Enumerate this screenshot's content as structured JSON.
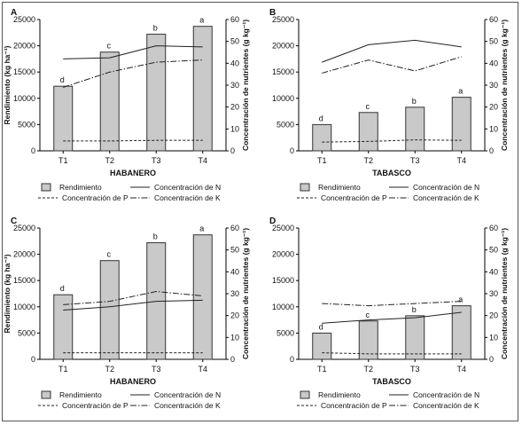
{
  "legend": {
    "rendimiento": "Rendimiento",
    "n": "Concentración de N",
    "p": "Concentración de P",
    "k": "Concentración de K"
  },
  "chart_data": [
    {
      "type": "bar",
      "panel": "A",
      "xlabel": "HABANERO",
      "ylabel": "Rendimiento (kg ha⁻¹)",
      "y2label": "Concentración de nutrientes (g kg⁻¹)",
      "categories": [
        "T1",
        "T2",
        "T3",
        "T4"
      ],
      "ylim": [
        0,
        25000
      ],
      "y2lim": [
        0,
        60
      ],
      "yticks": [
        "0",
        "5000",
        "10000",
        "15000",
        "20000",
        "25000"
      ],
      "y2ticks": [
        "0",
        "10",
        "20",
        "30",
        "40",
        "50",
        "60"
      ],
      "letters": [
        "d",
        "c",
        "b",
        "a"
      ],
      "bars": {
        "name": "Rendimiento",
        "values": [
          12300,
          18800,
          22200,
          23700
        ]
      },
      "lines": [
        {
          "key": "n",
          "name": "Concentración de N",
          "values": [
            42,
            42.5,
            48,
            47.5
          ]
        },
        {
          "key": "k",
          "name": "Concentración de K",
          "values": [
            29,
            36,
            40.5,
            41.5
          ]
        },
        {
          "key": "p",
          "name": "Concentración de P",
          "values": [
            4.5,
            4.5,
            4.8,
            4.8
          ]
        }
      ]
    },
    {
      "type": "bar",
      "panel": "B",
      "xlabel": "TABASCO",
      "ylabel": "",
      "y2label": "Concentración de nutrientes (g kg⁻¹)",
      "categories": [
        "T1",
        "T2",
        "T3",
        "T4"
      ],
      "ylim": [
        0,
        25000
      ],
      "y2lim": [
        0,
        60
      ],
      "yticks": [
        "0",
        "5000",
        "10000",
        "15000",
        "20000",
        "25000"
      ],
      "y2ticks": [
        "0",
        "10",
        "20",
        "30",
        "40",
        "50",
        "60"
      ],
      "letters": [
        "d",
        "c",
        "b",
        "a"
      ],
      "bars": {
        "name": "Rendimiento",
        "values": [
          5000,
          7300,
          8300,
          10200
        ]
      },
      "lines": [
        {
          "key": "n",
          "name": "Concentración de N",
          "values": [
            40.5,
            48.5,
            50.5,
            47.5
          ]
        },
        {
          "key": "k",
          "name": "Concentración de K",
          "values": [
            35.5,
            41.5,
            36.5,
            43
          ]
        },
        {
          "key": "p",
          "name": "Concentración de P",
          "values": [
            4,
            4.3,
            5,
            4.8
          ]
        }
      ]
    },
    {
      "type": "bar",
      "panel": "C",
      "xlabel": "HABANERO",
      "ylabel": "Rendimiento (kg ha⁻¹)",
      "y2label": "Concentración de nutrientes (g kg⁻¹)",
      "categories": [
        "T1",
        "T2",
        "T3",
        "T4"
      ],
      "ylim": [
        0,
        25000
      ],
      "y2lim": [
        0,
        60
      ],
      "yticks": [
        "0",
        "5000",
        "10000",
        "15000",
        "20000",
        "25000"
      ],
      "y2ticks": [
        "0",
        "10",
        "20",
        "30",
        "40",
        "50",
        "60"
      ],
      "letters": [
        "d",
        "c",
        "b",
        "a"
      ],
      "bars": {
        "name": "Rendimiento",
        "values": [
          12300,
          18800,
          22200,
          23700
        ]
      },
      "lines": [
        {
          "key": "n",
          "name": "Concentración de N",
          "values": [
            22.5,
            24,
            26.5,
            27
          ]
        },
        {
          "key": "k",
          "name": "Concentración de K",
          "values": [
            25,
            26.5,
            31,
            29
          ]
        },
        {
          "key": "p",
          "name": "Concentración de P",
          "values": [
            3,
            3,
            3,
            3
          ]
        }
      ]
    },
    {
      "type": "bar",
      "panel": "D",
      "xlabel": "TABASCO",
      "ylabel": "",
      "y2label": "Concentración de nutrientes (g kg⁻¹)",
      "categories": [
        "T1",
        "T2",
        "T3",
        "T4"
      ],
      "ylim": [
        0,
        25000
      ],
      "y2lim": [
        0,
        60
      ],
      "yticks": [
        "0",
        "5000",
        "10000",
        "15000",
        "20000",
        "25000"
      ],
      "y2ticks": [
        "0",
        "10",
        "20",
        "30",
        "40",
        "50",
        "60"
      ],
      "letters": [
        "d",
        "c",
        "b",
        "a"
      ],
      "bars": {
        "name": "Rendimiento",
        "values": [
          5000,
          7300,
          8300,
          10200
        ]
      },
      "lines": [
        {
          "key": "n",
          "name": "Concentración de N",
          "values": [
            16.5,
            18,
            19,
            21.5
          ]
        },
        {
          "key": "k",
          "name": "Concentración de K",
          "values": [
            25.5,
            24.5,
            25.5,
            26.5
          ]
        },
        {
          "key": "p",
          "name": "Concentración de P",
          "values": [
            3,
            2.5,
            2.5,
            2.5
          ]
        }
      ]
    }
  ]
}
